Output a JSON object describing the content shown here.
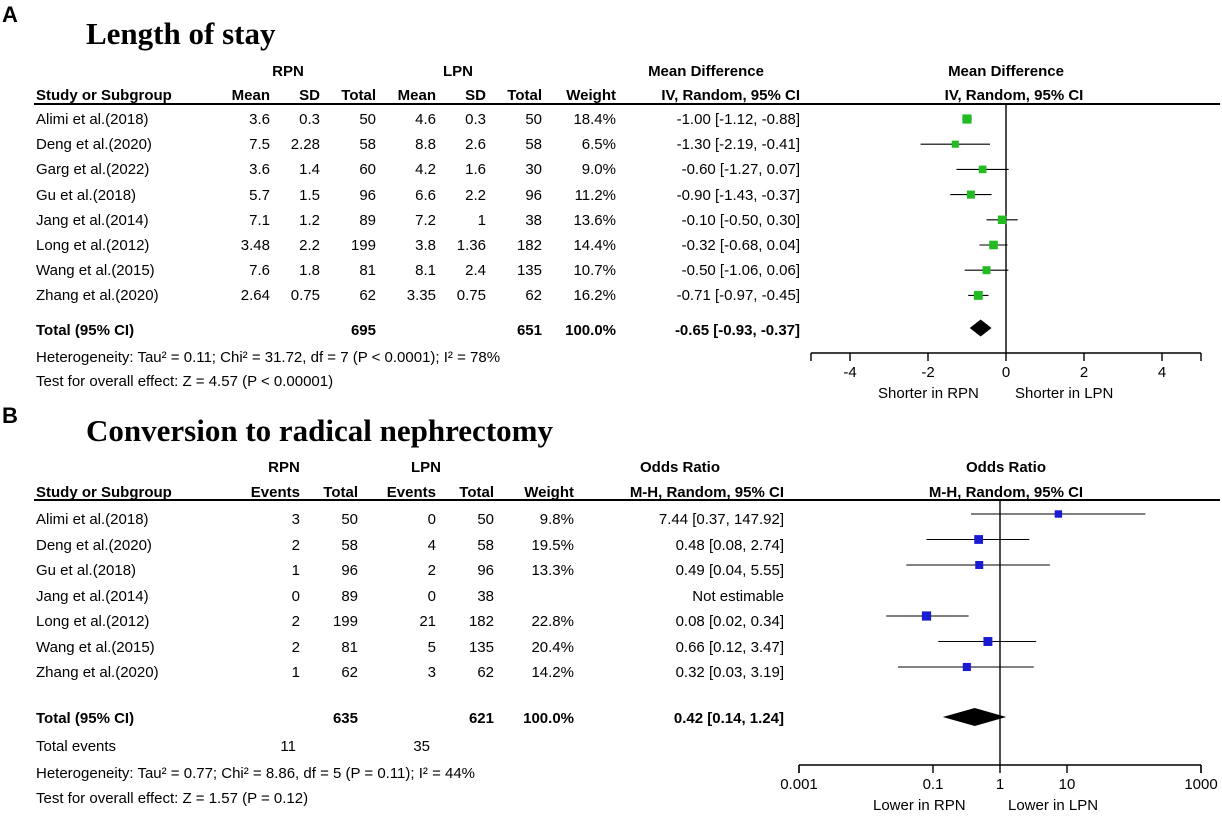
{
  "panelA": {
    "letter": "A",
    "title": "Length of stay",
    "groups": {
      "g1": "RPN",
      "g2": "LPN",
      "effect": "Mean Difference",
      "plot": "Mean Difference"
    },
    "columns": [
      "Study or Subgroup",
      "Mean",
      "SD",
      "Total",
      "Mean",
      "SD",
      "Total",
      "Weight",
      "IV, Random, 95% CI",
      "IV, Random, 95% CI"
    ],
    "studies": [
      {
        "name": "Alimi et al.(2018)",
        "m1": "3.6",
        "sd1": "0.3",
        "n1": "50",
        "m2": "4.6",
        "sd2": "0.3",
        "n2": "50",
        "weight": "18.4%",
        "ci": "-1.00 [-1.12, -0.88]"
      },
      {
        "name": "Deng et al.(2020)",
        "m1": "7.5",
        "sd1": "2.28",
        "n1": "58",
        "m2": "8.8",
        "sd2": "2.6",
        "n2": "58",
        "weight": "6.5%",
        "ci": "-1.30 [-2.19, -0.41]"
      },
      {
        "name": "Garg et al.(2022)",
        "m1": "3.6",
        "sd1": "1.4",
        "n1": "60",
        "m2": "4.2",
        "sd2": "1.6",
        "n2": "30",
        "weight": "9.0%",
        "ci": "-0.60 [-1.27, 0.07]"
      },
      {
        "name": "Gu et al.(2018)",
        "m1": "5.7",
        "sd1": "1.5",
        "n1": "96",
        "m2": "6.6",
        "sd2": "2.2",
        "n2": "96",
        "weight": "11.2%",
        "ci": "-0.90 [-1.43, -0.37]"
      },
      {
        "name": "Jang et al.(2014)",
        "m1": "7.1",
        "sd1": "1.2",
        "n1": "89",
        "m2": "7.2",
        "sd2": "1",
        "n2": "38",
        "weight": "13.6%",
        "ci": "-0.10 [-0.50, 0.30]"
      },
      {
        "name": "Long et al.(2012)",
        "m1": "3.48",
        "sd1": "2.2",
        "n1": "199",
        "m2": "3.8",
        "sd2": "1.36",
        "n2": "182",
        "weight": "14.4%",
        "ci": "-0.32 [-0.68, 0.04]"
      },
      {
        "name": "Wang et al.(2015)",
        "m1": "7.6",
        "sd1": "1.8",
        "n1": "81",
        "m2": "8.1",
        "sd2": "2.4",
        "n2": "135",
        "weight": "10.7%",
        "ci": "-0.50 [-1.06, 0.06]"
      },
      {
        "name": "Zhang et al.(2020)",
        "m1": "2.64",
        "sd1": "0.75",
        "n1": "62",
        "m2": "3.35",
        "sd2": "0.75",
        "n2": "62",
        "weight": "16.2%",
        "ci": "-0.71 [-0.97, -0.45]"
      }
    ],
    "total": {
      "label": "Total (95% CI)",
      "n1": "695",
      "n2": "651",
      "weight": "100.0%",
      "ci": "-0.65 [-0.93, -0.37]"
    },
    "heterogeneity": "Heterogeneity: Tau² = 0.11; Chi² = 31.72, df = 7 (P < 0.0001); I² = 78%",
    "overall": "Test for overall effect: Z = 4.57 (P < 0.00001)",
    "axis_label_left": "Shorter in RPN",
    "axis_label_right": "Shorter in LPN"
  },
  "panelB": {
    "letter": "B",
    "title": "Conversion to radical nephrectomy",
    "groups": {
      "g1": "RPN",
      "g2": "LPN",
      "effect": "Odds Ratio",
      "plot": "Odds Ratio"
    },
    "columns": [
      "Study or Subgroup",
      "Events",
      "Total",
      "Events",
      "Total",
      "Weight",
      "M-H, Random, 95% CI",
      "M-H, Random, 95% CI"
    ],
    "studies": [
      {
        "name": "Alimi et al.(2018)",
        "e1": "3",
        "n1": "50",
        "e2": "0",
        "n2": "50",
        "weight": "9.8%",
        "ci": "7.44 [0.37, 147.92]"
      },
      {
        "name": "Deng et al.(2020)",
        "e1": "2",
        "n1": "58",
        "e2": "4",
        "n2": "58",
        "weight": "19.5%",
        "ci": "0.48 [0.08, 2.74]"
      },
      {
        "name": "Gu et al.(2018)",
        "e1": "1",
        "n1": "96",
        "e2": "2",
        "n2": "96",
        "weight": "13.3%",
        "ci": "0.49 [0.04, 5.55]"
      },
      {
        "name": "Jang et al.(2014)",
        "e1": "0",
        "n1": "89",
        "e2": "0",
        "n2": "38",
        "weight": "",
        "ci": "Not estimable"
      },
      {
        "name": "Long et al.(2012)",
        "e1": "2",
        "n1": "199",
        "e2": "21",
        "n2": "182",
        "weight": "22.8%",
        "ci": "0.08 [0.02, 0.34]"
      },
      {
        "name": "Wang et al.(2015)",
        "e1": "2",
        "n1": "81",
        "e2": "5",
        "n2": "135",
        "weight": "20.4%",
        "ci": "0.66 [0.12, 3.47]"
      },
      {
        "name": "Zhang et al.(2020)",
        "e1": "1",
        "n1": "62",
        "e2": "3",
        "n2": "62",
        "weight": "14.2%",
        "ci": "0.32 [0.03, 3.19]"
      }
    ],
    "total": {
      "label": "Total (95% CI)",
      "n1": "635",
      "n2": "621",
      "weight": "100.0%",
      "ci": "0.42 [0.14, 1.24]"
    },
    "total_events": {
      "label": "Total events",
      "e1": "11",
      "e2": "35"
    },
    "heterogeneity": "Heterogeneity: Tau² = 0.77; Chi² = 8.86, df = 5 (P = 0.11); I² = 44%",
    "overall": "Test for overall effect: Z = 1.57 (P = 0.12)",
    "axis_label_left": "Lower in RPN",
    "axis_label_right": "Lower in LPN"
  },
  "chart_data": [
    {
      "type": "forest",
      "title": "Length of stay",
      "scale": "linear",
      "xlim": [
        -5,
        5
      ],
      "ticks": [
        -4,
        -2,
        0,
        2,
        4
      ],
      "tick_labels": [
        "-4",
        "-2",
        "0",
        "2",
        "4"
      ],
      "marker_color": "#22bb22",
      "studies": [
        {
          "name": "Alimi et al.(2018)",
          "est": -1.0,
          "lo": -1.12,
          "hi": -0.88,
          "weight": 18.4
        },
        {
          "name": "Deng et al.(2020)",
          "est": -1.3,
          "lo": -2.19,
          "hi": -0.41,
          "weight": 6.5
        },
        {
          "name": "Garg et al.(2022)",
          "est": -0.6,
          "lo": -1.27,
          "hi": 0.07,
          "weight": 9.0
        },
        {
          "name": "Gu et al.(2018)",
          "est": -0.9,
          "lo": -1.43,
          "hi": -0.37,
          "weight": 11.2
        },
        {
          "name": "Jang et al.(2014)",
          "est": -0.1,
          "lo": -0.5,
          "hi": 0.3,
          "weight": 13.6
        },
        {
          "name": "Long et al.(2012)",
          "est": -0.32,
          "lo": -0.68,
          "hi": 0.04,
          "weight": 14.4
        },
        {
          "name": "Wang et al.(2015)",
          "est": -0.5,
          "lo": -1.06,
          "hi": 0.06,
          "weight": 10.7
        },
        {
          "name": "Zhang et al.(2020)",
          "est": -0.71,
          "lo": -0.97,
          "hi": -0.45,
          "weight": 16.2
        }
      ],
      "pooled": {
        "est": -0.65,
        "lo": -0.93,
        "hi": -0.37
      }
    },
    {
      "type": "forest",
      "title": "Conversion to radical nephrectomy",
      "scale": "log",
      "xlim": [
        0.001,
        1000
      ],
      "ticks": [
        0.001,
        0.1,
        1,
        10,
        1000
      ],
      "tick_labels": [
        "0.001",
        "0.1",
        "1",
        "10",
        "1000"
      ],
      "marker_color": "#1a1ad0",
      "studies": [
        {
          "name": "Alimi et al.(2018)",
          "est": 7.44,
          "lo": 0.37,
          "hi": 147.92,
          "weight": 9.8
        },
        {
          "name": "Deng et al.(2020)",
          "est": 0.48,
          "lo": 0.08,
          "hi": 2.74,
          "weight": 19.5
        },
        {
          "name": "Gu et al.(2018)",
          "est": 0.49,
          "lo": 0.04,
          "hi": 5.55,
          "weight": 13.3
        },
        {
          "name": "Jang et al.(2014)",
          "est": null,
          "lo": null,
          "hi": null,
          "weight": 0
        },
        {
          "name": "Long et al.(2012)",
          "est": 0.08,
          "lo": 0.02,
          "hi": 0.34,
          "weight": 22.8
        },
        {
          "name": "Wang et al.(2015)",
          "est": 0.66,
          "lo": 0.12,
          "hi": 3.47,
          "weight": 20.4
        },
        {
          "name": "Zhang et al.(2020)",
          "est": 0.32,
          "lo": 0.03,
          "hi": 3.19,
          "weight": 14.2
        }
      ],
      "pooled": {
        "est": 0.42,
        "lo": 0.14,
        "hi": 1.24
      }
    }
  ]
}
